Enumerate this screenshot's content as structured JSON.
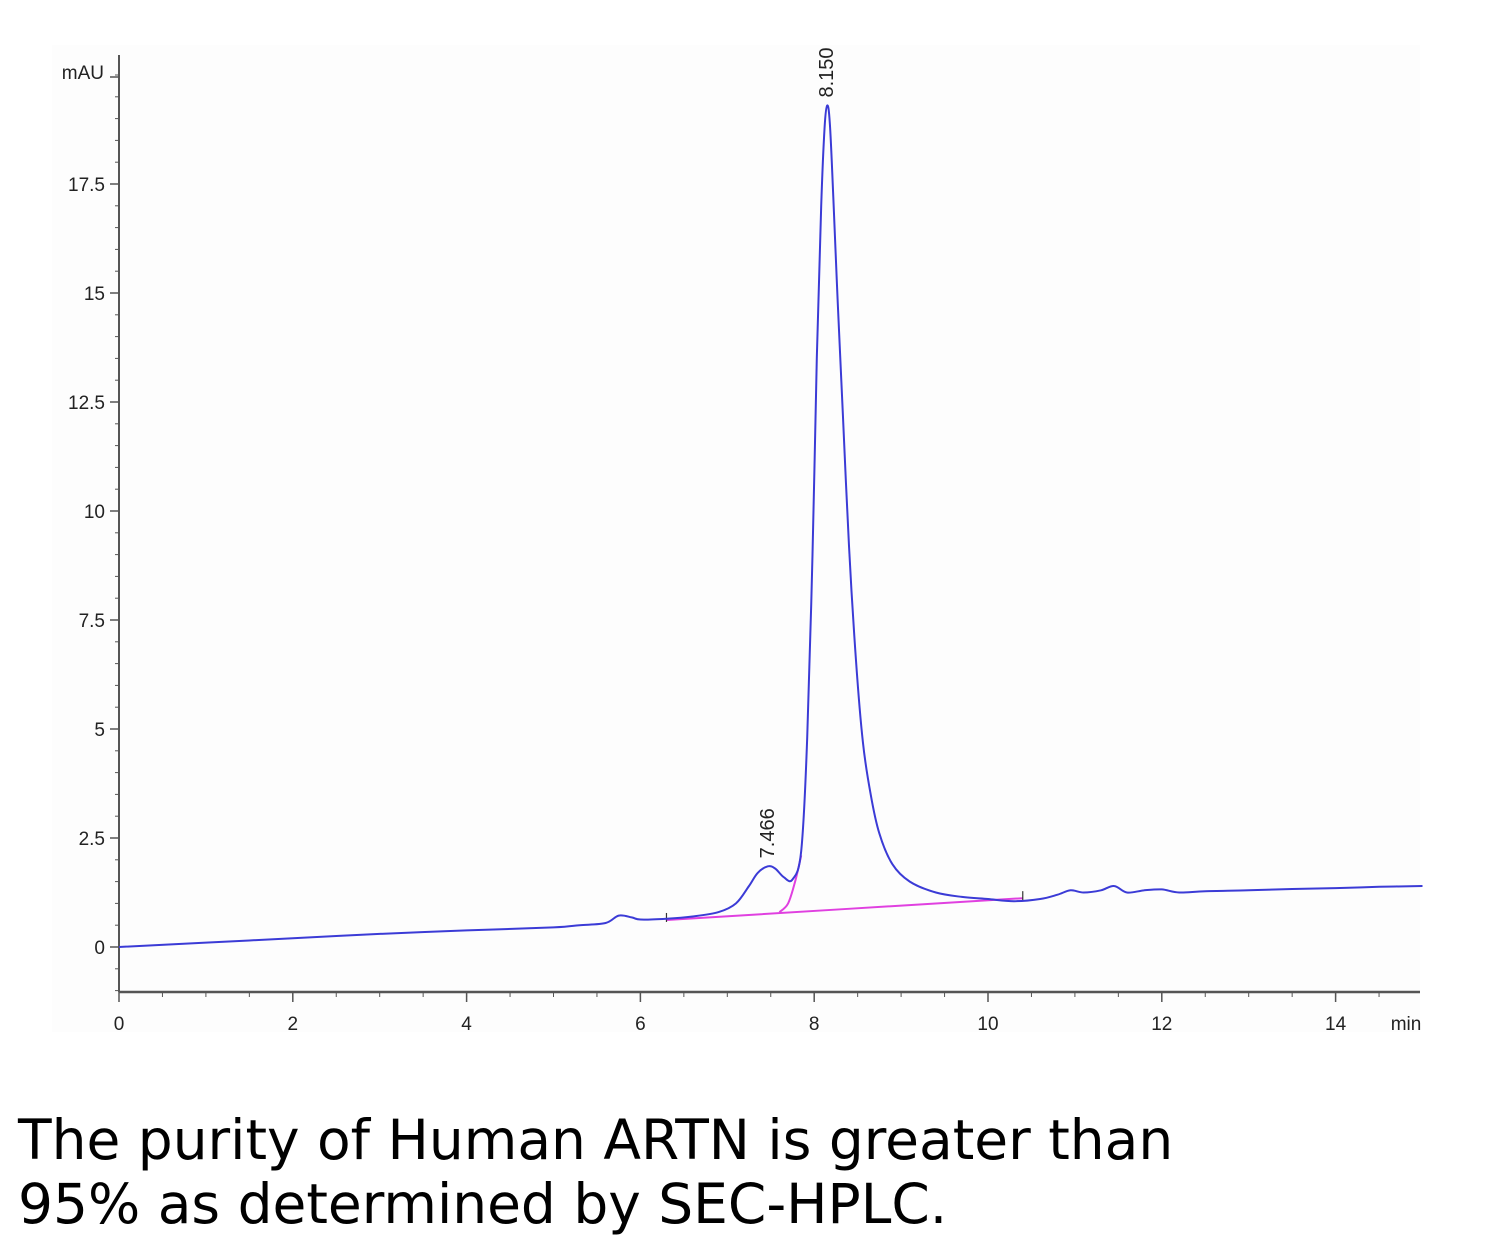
{
  "chart_data": {
    "type": "line",
    "title": "",
    "xlabel": "",
    "ylabel": "",
    "x_unit": "min",
    "y_unit": "mAU",
    "xlim": [
      0,
      15
    ],
    "ylim": [
      -1,
      20
    ],
    "x_ticks": [
      0,
      2,
      4,
      6,
      8,
      10,
      12,
      14
    ],
    "x_tick_labels": [
      "0",
      "2",
      "4",
      "6",
      "8",
      "10",
      "12",
      "14"
    ],
    "y_ticks": [
      0,
      2.5,
      5,
      7.5,
      10,
      12.5,
      15,
      17.5
    ],
    "y_tick_labels": [
      "0",
      "2.5",
      "5",
      "7.5",
      "10",
      "12.5",
      "15",
      "17.5"
    ],
    "grid": false,
    "colors": {
      "trace": "#3b3bd6",
      "baseline": "#e040e0",
      "axis": "#555555"
    },
    "series": [
      {
        "x": [
          0,
          1,
          2,
          3,
          4,
          5,
          5.3,
          5.6,
          5.75,
          5.9,
          6.0,
          6.3,
          6.6,
          6.9,
          7.1,
          7.25,
          7.35,
          7.466,
          7.55,
          7.65,
          7.75,
          7.85,
          7.92,
          7.98,
          8.03,
          8.08,
          8.12,
          8.15,
          8.18,
          8.22,
          8.27,
          8.33,
          8.4,
          8.48,
          8.56,
          8.65,
          8.75,
          8.9,
          9.1,
          9.4,
          9.7,
          10.0,
          10.3,
          10.6,
          10.8,
          10.95,
          11.1,
          11.3,
          11.45,
          11.6,
          11.8,
          12.0,
          12.2,
          12.5,
          13,
          13.5,
          14,
          14.5,
          15
        ],
        "y": [
          0,
          0.1,
          0.2,
          0.3,
          0.38,
          0.45,
          0.5,
          0.55,
          0.72,
          0.68,
          0.63,
          0.65,
          0.7,
          0.8,
          1.0,
          1.4,
          1.7,
          1.85,
          1.8,
          1.6,
          1.55,
          2.2,
          4.8,
          9.0,
          13.5,
          17.0,
          18.8,
          19.3,
          18.9,
          17.2,
          14.8,
          12.2,
          9.2,
          6.6,
          4.7,
          3.5,
          2.6,
          1.9,
          1.5,
          1.25,
          1.15,
          1.1,
          1.05,
          1.1,
          1.2,
          1.3,
          1.25,
          1.3,
          1.4,
          1.25,
          1.3,
          1.32,
          1.25,
          1.28,
          1.3,
          1.33,
          1.35,
          1.38,
          1.4
        ]
      }
    ],
    "baselines": [
      {
        "x": [
          6.3,
          10.4
        ],
        "y": [
          0.62,
          1.12
        ]
      },
      {
        "x": [
          7.6,
          7.7,
          7.78,
          7.85
        ],
        "y": [
          0.8,
          1.0,
          1.5,
          2.1
        ]
      }
    ],
    "peaks": [
      {
        "label": "7.466",
        "x": 7.466,
        "y": 1.85
      },
      {
        "label": "8.150",
        "x": 8.15,
        "y": 19.3
      }
    ]
  },
  "caption": {
    "line1": "The purity of Human ARTN is greater than",
    "line2": "95% as determined by SEC-HPLC."
  }
}
